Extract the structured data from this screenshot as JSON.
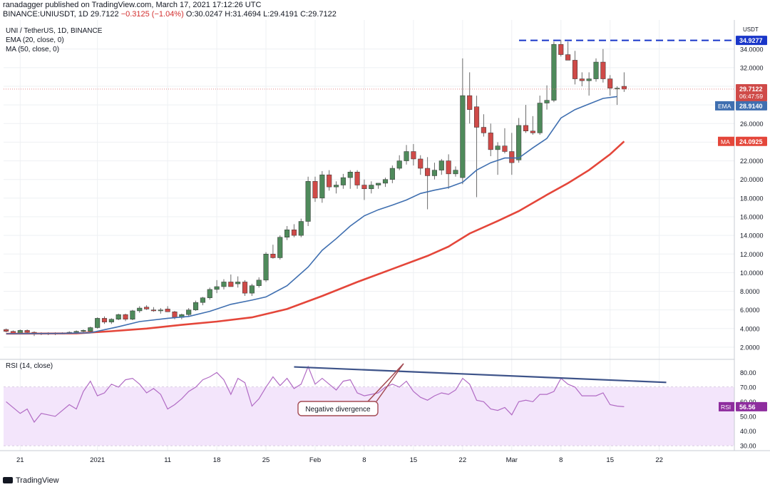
{
  "header": {
    "publish_line": "ranadagger published on TradingView.com, March 17, 2021 17:12:26 UTC",
    "symbol": "BINANCE:UNIUSDT, 1D",
    "price": "29.7122",
    "change": "−0.3125 (−1.04%)",
    "open": "O:30.0247",
    "high": "H:31.4694",
    "low": "L:29.4191",
    "close": "C:29.7122"
  },
  "legend": {
    "title": "UNI / TetherUS, 1D, BINANCE",
    "ema": "EMA (20, close, 0)",
    "ma": "MA (50, close, 0)",
    "rsi": "RSI (14, close)"
  },
  "footer": {
    "logo": "TradingView"
  },
  "colors": {
    "up": "#4f8a5b",
    "down": "#cf4a48",
    "ema": "#3f6fb0",
    "ma": "#e4463a",
    "rsi": "#b16bc4",
    "rsi_band": "#f3e5fb",
    "trend": "#3d5389",
    "annot": "#a34a52",
    "resistance": "#1936c9"
  },
  "chart_data": [
    {
      "type": "candlestick",
      "title": "UNI / TetherUS, 1D, BINANCE",
      "currency": "USDT",
      "ylim": [
        1.0,
        36.2
      ],
      "y_ticks": [
        "2.0000",
        "4.0000",
        "6.0000",
        "8.0000",
        "10.0000",
        "12.0000",
        "14.0000",
        "16.0000",
        "18.0000",
        "20.0000",
        "22.0000",
        "24.0000",
        "26.0000",
        "28.0000",
        "30.0000",
        "32.0000",
        "34.0000"
      ],
      "x_ticks": [
        {
          "label": "21",
          "i": 2
        },
        {
          "label": "2021",
          "i": 13
        },
        {
          "label": "11",
          "i": 23
        },
        {
          "label": "18",
          "i": 30
        },
        {
          "label": "25",
          "i": 37
        },
        {
          "label": "Feb",
          "i": 44
        },
        {
          "label": "8",
          "i": 51
        },
        {
          "label": "15",
          "i": 58
        },
        {
          "label": "22",
          "i": 65
        },
        {
          "label": "Mar",
          "i": 72
        },
        {
          "label": "8",
          "i": 79
        },
        {
          "label": "15",
          "i": 86
        },
        {
          "label": "22",
          "i": 93
        }
      ],
      "candles": [
        [
          3.9,
          4.0,
          3.6,
          3.7
        ],
        [
          3.7,
          3.8,
          3.4,
          3.5
        ],
        [
          3.5,
          3.9,
          3.4,
          3.8
        ],
        [
          3.8,
          3.9,
          3.5,
          3.6
        ],
        [
          3.6,
          3.7,
          3.2,
          3.4
        ],
        [
          3.4,
          3.6,
          3.3,
          3.5
        ],
        [
          3.5,
          3.6,
          3.3,
          3.4
        ],
        [
          3.4,
          3.6,
          3.3,
          3.5
        ],
        [
          3.5,
          3.6,
          3.4,
          3.5
        ],
        [
          3.5,
          3.7,
          3.4,
          3.6
        ],
        [
          3.6,
          3.8,
          3.5,
          3.7
        ],
        [
          3.7,
          3.9,
          3.6,
          3.8
        ],
        [
          3.7,
          4.2,
          3.6,
          4.1
        ],
        [
          4.1,
          5.2,
          4.0,
          5.1
        ],
        [
          5.1,
          5.3,
          4.5,
          4.7
        ],
        [
          4.7,
          5.1,
          4.5,
          5.0
        ],
        [
          5.0,
          5.6,
          4.9,
          5.5
        ],
        [
          5.5,
          5.6,
          4.8,
          5.0
        ],
        [
          5.0,
          6.0,
          4.9,
          5.9
        ],
        [
          5.9,
          6.4,
          5.7,
          6.2
        ],
        [
          6.3,
          6.5,
          6.0,
          6.1
        ],
        [
          6.0,
          6.3,
          5.8,
          5.9
        ],
        [
          5.9,
          6.2,
          5.6,
          6.0
        ],
        [
          6.1,
          6.4,
          5.8,
          5.8
        ],
        [
          5.8,
          5.9,
          5.0,
          5.2
        ],
        [
          5.2,
          5.6,
          5.0,
          5.5
        ],
        [
          5.5,
          6.2,
          5.3,
          6.0
        ],
        [
          6.0,
          7.0,
          5.9,
          6.8
        ],
        [
          6.8,
          7.4,
          6.5,
          7.3
        ],
        [
          7.3,
          8.4,
          7.1,
          8.2
        ],
        [
          8.2,
          9.2,
          7.8,
          8.5
        ],
        [
          8.5,
          9.3,
          8.2,
          9.0
        ],
        [
          9.0,
          9.8,
          8.5,
          8.5
        ],
        [
          8.8,
          9.6,
          8.4,
          9.0
        ],
        [
          9.0,
          9.2,
          7.5,
          7.8
        ],
        [
          7.8,
          8.8,
          7.5,
          8.6
        ],
        [
          8.6,
          9.5,
          8.4,
          9.2
        ],
        [
          9.2,
          12.2,
          9.0,
          12.0
        ],
        [
          12.0,
          13.0,
          11.5,
          11.6
        ],
        [
          11.6,
          14.0,
          11.4,
          13.8
        ],
        [
          13.8,
          15.0,
          13.5,
          14.6
        ],
        [
          14.6,
          15.2,
          13.8,
          14.0
        ],
        [
          14.0,
          15.8,
          13.8,
          15.5
        ],
        [
          15.5,
          20.3,
          15.0,
          19.8
        ],
        [
          19.8,
          20.3,
          17.6,
          18.0
        ],
        [
          18.0,
          20.9,
          17.5,
          20.5
        ],
        [
          20.5,
          21.0,
          18.8,
          19.2
        ],
        [
          19.2,
          19.8,
          18.5,
          19.4
        ],
        [
          19.4,
          20.6,
          19.0,
          20.2
        ],
        [
          20.2,
          21.0,
          19.0,
          20.8
        ],
        [
          20.8,
          21.0,
          19.0,
          19.4
        ],
        [
          19.4,
          20.0,
          17.8,
          19.0
        ],
        [
          19.0,
          19.8,
          18.5,
          19.4
        ],
        [
          19.4,
          19.6,
          19.0,
          19.6
        ],
        [
          19.6,
          20.2,
          19.2,
          20.0
        ],
        [
          20.0,
          21.5,
          19.6,
          21.2
        ],
        [
          21.2,
          22.6,
          21.0,
          22.0
        ],
        [
          22.0,
          23.7,
          21.6,
          23.0
        ],
        [
          23.0,
          23.8,
          21.5,
          22.2
        ],
        [
          22.2,
          22.6,
          20.5,
          21.2
        ],
        [
          21.2,
          22.4,
          16.8,
          20.4
        ],
        [
          20.4,
          21.8,
          20.0,
          21.0
        ],
        [
          21.0,
          22.2,
          20.5,
          22.0
        ],
        [
          22.0,
          22.7,
          19.0,
          20.6
        ],
        [
          20.6,
          21.4,
          20.3,
          21.0
        ],
        [
          20.2,
          33.0,
          19.5,
          29.0
        ],
        [
          29.0,
          31.5,
          26.0,
          27.5
        ],
        [
          27.8,
          29.0,
          18.1,
          25.6
        ],
        [
          25.6,
          27.0,
          24.6,
          25.0
        ],
        [
          25.0,
          26.0,
          22.5,
          23.2
        ],
        [
          23.2,
          24.0,
          20.5,
          23.6
        ],
        [
          23.6,
          25.5,
          22.8,
          23.0
        ],
        [
          23.0,
          25.0,
          20.5,
          21.8
        ],
        [
          22.1,
          26.6,
          21.8,
          25.8
        ],
        [
          25.8,
          28.0,
          25.0,
          25.2
        ],
        [
          25.2,
          26.8,
          24.8,
          25.0
        ],
        [
          25.0,
          29.0,
          24.8,
          28.2
        ],
        [
          28.2,
          30.1,
          27.5,
          28.5
        ],
        [
          28.5,
          34.8,
          28.3,
          34.5
        ],
        [
          34.5,
          35.0,
          33.2,
          33.4
        ],
        [
          33.4,
          34.8,
          33.0,
          32.8
        ],
        [
          32.8,
          33.8,
          30.2,
          30.8
        ],
        [
          30.8,
          31.5,
          30.0,
          30.6
        ],
        [
          30.6,
          31.5,
          29.0,
          30.8
        ],
        [
          30.8,
          33.0,
          30.5,
          32.6
        ],
        [
          32.6,
          34.0,
          30.4,
          30.8
        ],
        [
          30.8,
          31.2,
          29.0,
          29.8
        ],
        [
          29.8,
          30.0,
          28.0,
          29.8
        ],
        [
          30.0,
          31.5,
          29.4,
          29.7
        ]
      ],
      "ema_20": [
        [
          0,
          3.45
        ],
        [
          8,
          3.48
        ],
        [
          12,
          3.55
        ],
        [
          16,
          4.2
        ],
        [
          19,
          4.75
        ],
        [
          23,
          5.1
        ],
        [
          26,
          5.3
        ],
        [
          29,
          5.85
        ],
        [
          32,
          6.6
        ],
        [
          35,
          7.05
        ],
        [
          37,
          7.4
        ],
        [
          40,
          8.6
        ],
        [
          43,
          10.6
        ],
        [
          45,
          12.4
        ],
        [
          47,
          13.65
        ],
        [
          49,
          15.0
        ],
        [
          51,
          16.1
        ],
        [
          53,
          16.75
        ],
        [
          55,
          17.25
        ],
        [
          57,
          17.8
        ],
        [
          59,
          18.5
        ],
        [
          61,
          18.85
        ],
        [
          63,
          19.15
        ],
        [
          65,
          19.7
        ],
        [
          67,
          21.0
        ],
        [
          69,
          21.8
        ],
        [
          71,
          22.3
        ],
        [
          73,
          22.3
        ],
        [
          75,
          23.4
        ],
        [
          77,
          24.4
        ],
        [
          79,
          26.6
        ],
        [
          81,
          27.5
        ],
        [
          83,
          28.1
        ],
        [
          85,
          28.7
        ],
        [
          87,
          28.9
        ]
      ],
      "ma_50": [
        [
          0,
          3.45
        ],
        [
          10,
          3.48
        ],
        [
          15,
          3.72
        ],
        [
          20,
          4.0
        ],
        [
          25,
          4.4
        ],
        [
          30,
          4.75
        ],
        [
          35,
          5.2
        ],
        [
          40,
          6.1
        ],
        [
          45,
          7.5
        ],
        [
          50,
          9.0
        ],
        [
          55,
          10.4
        ],
        [
          60,
          11.8
        ],
        [
          63,
          12.8
        ],
        [
          66,
          14.2
        ],
        [
          70,
          15.55
        ],
        [
          73,
          16.6
        ],
        [
          77,
          18.35
        ],
        [
          80,
          19.6
        ],
        [
          83,
          21.0
        ],
        [
          86,
          22.7
        ],
        [
          88,
          24.09
        ]
      ],
      "labels": {
        "resistance": "34.9277",
        "price": "29.7122",
        "countdown": "06:47:59",
        "ema": "28.9140",
        "ma": "24.0925",
        "ema_tag": "EMA",
        "ma_tag": "MA"
      },
      "resistance_level": 34.9277
    },
    {
      "type": "line",
      "title": "RSI (14, close)",
      "ylim": [
        27,
        87
      ],
      "band": [
        30,
        70
      ],
      "y_ticks": [
        "30.00",
        "40.00",
        "50.00",
        "60.00",
        "70.00",
        "80.00"
      ],
      "values": [
        [
          0,
          60
        ],
        [
          2,
          52
        ],
        [
          3,
          55
        ],
        [
          4,
          46
        ],
        [
          5,
          52
        ],
        [
          7,
          50
        ],
        [
          9,
          58
        ],
        [
          10,
          55
        ],
        [
          11,
          67
        ],
        [
          12,
          74
        ],
        [
          13,
          64
        ],
        [
          14,
          66
        ],
        [
          15,
          72
        ],
        [
          16,
          70
        ],
        [
          17,
          75
        ],
        [
          18,
          76
        ],
        [
          19,
          72
        ],
        [
          20,
          66
        ],
        [
          21,
          69
        ],
        [
          22,
          65
        ],
        [
          23,
          55
        ],
        [
          24,
          58
        ],
        [
          25,
          62
        ],
        [
          26,
          67
        ],
        [
          27,
          70
        ],
        [
          28,
          75
        ],
        [
          29,
          77
        ],
        [
          30,
          80
        ],
        [
          31,
          75
        ],
        [
          32,
          65
        ],
        [
          33,
          76
        ],
        [
          34,
          73
        ],
        [
          35,
          57
        ],
        [
          36,
          62
        ],
        [
          37,
          70
        ],
        [
          38,
          77
        ],
        [
          39,
          71
        ],
        [
          40,
          76
        ],
        [
          41,
          69
        ],
        [
          42,
          72
        ],
        [
          43,
          84
        ],
        [
          44,
          72
        ],
        [
          45,
          76
        ],
        [
          46,
          72
        ],
        [
          47,
          68
        ],
        [
          48,
          74
        ],
        [
          49,
          75
        ],
        [
          50,
          66
        ],
        [
          51,
          64
        ],
        [
          52,
          65
        ],
        [
          53,
          66
        ],
        [
          54,
          70
        ],
        [
          55,
          72
        ],
        [
          56,
          70
        ],
        [
          57,
          74
        ],
        [
          58,
          67
        ],
        [
          59,
          63
        ],
        [
          60,
          61
        ],
        [
          61,
          64
        ],
        [
          62,
          66
        ],
        [
          63,
          65
        ],
        [
          64,
          68
        ],
        [
          65,
          76
        ],
        [
          66,
          72
        ],
        [
          67,
          61
        ],
        [
          68,
          60
        ],
        [
          69,
          55
        ],
        [
          70,
          54
        ],
        [
          71,
          56
        ],
        [
          72,
          51
        ],
        [
          73,
          60
        ],
        [
          74,
          61
        ],
        [
          75,
          60
        ],
        [
          76,
          65
        ],
        [
          77,
          65
        ],
        [
          78,
          67
        ],
        [
          79,
          76
        ],
        [
          80,
          72
        ],
        [
          81,
          70
        ],
        [
          82,
          64
        ],
        [
          83,
          64
        ],
        [
          84,
          64
        ],
        [
          85,
          66
        ],
        [
          86,
          58
        ],
        [
          87,
          57
        ],
        [
          88,
          56.56
        ]
      ],
      "value_label": "56.56",
      "tag": "RSI",
      "divergence_line": [
        [
          41,
          83.8
        ],
        [
          94,
          73.2
        ]
      ],
      "annotation": "Negative divergence"
    }
  ]
}
